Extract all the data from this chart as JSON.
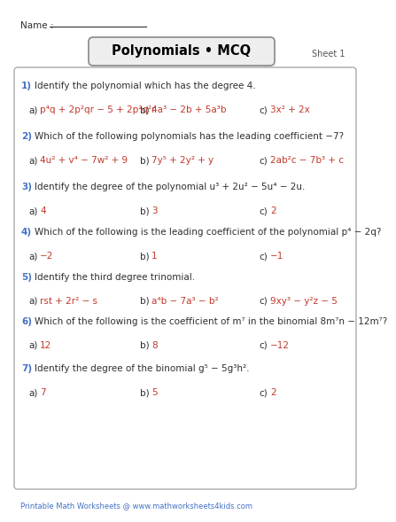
{
  "title": "Polynomials • MCQ",
  "sheet": "Sheet 1",
  "name_label": "Name :",
  "footer": "Printable Math Worksheets @ www.mathworksheets4kids.com",
  "bg_color": "#ffffff",
  "questions": [
    {
      "num": "1)",
      "text": "Identify the polynomial which has the degree 4.",
      "answers": [
        {
          "label": "a)",
          "text": "p⁴q + 2p²qr − 5 + 2p²q²r"
        },
        {
          "label": "b)",
          "text": "4a³ − 2b + 5a³b"
        },
        {
          "label": "c)",
          "text": "3x² + 2x"
        }
      ]
    },
    {
      "num": "2)",
      "text": "Which of the following polynomials has the leading coefficient −7?",
      "answers": [
        {
          "label": "a)",
          "text": "4u² + v⁴ − 7w² + 9"
        },
        {
          "label": "b)",
          "text": "7y⁵ + 2y² + y"
        },
        {
          "label": "c)",
          "text": "2ab²c − 7b³ + c"
        }
      ]
    },
    {
      "num": "3)",
      "text": "Identify the degree of the polynomial u³ + 2u² − 5u⁴ − 2u.",
      "answers": [
        {
          "label": "a)",
          "text": "4"
        },
        {
          "label": "b)",
          "text": "3"
        },
        {
          "label": "c)",
          "text": "2"
        }
      ]
    },
    {
      "num": "4)",
      "text": "Which of the following is the leading coefficient of the polynomial p⁴ − 2q?",
      "answers": [
        {
          "label": "a)",
          "text": "−2"
        },
        {
          "label": "b)",
          "text": "1"
        },
        {
          "label": "c)",
          "text": "−1"
        }
      ]
    },
    {
      "num": "5)",
      "text": "Identify the third degree trinomial.",
      "answers": [
        {
          "label": "a)",
          "text": "rst + 2r² − s"
        },
        {
          "label": "b)",
          "text": "a⁴b − 7a³ − b²"
        },
        {
          "label": "c)",
          "text": "9xy³ − y²z − 5"
        }
      ]
    },
    {
      "num": "6)",
      "text": "Which of the following is the coefficient of m⁷ in the binomial 8m⁷n − 12m⁷?",
      "answers": [
        {
          "label": "a)",
          "text": "12"
        },
        {
          "label": "b)",
          "text": "8"
        },
        {
          "label": "c)",
          "text": "−12"
        }
      ]
    },
    {
      "num": "7)",
      "text": "Identify the degree of the binomial g⁵ − 5g³h².",
      "answers": [
        {
          "label": "a)",
          "text": "7"
        },
        {
          "label": "b)",
          "text": "5"
        },
        {
          "label": "c)",
          "text": "2"
        }
      ]
    }
  ]
}
